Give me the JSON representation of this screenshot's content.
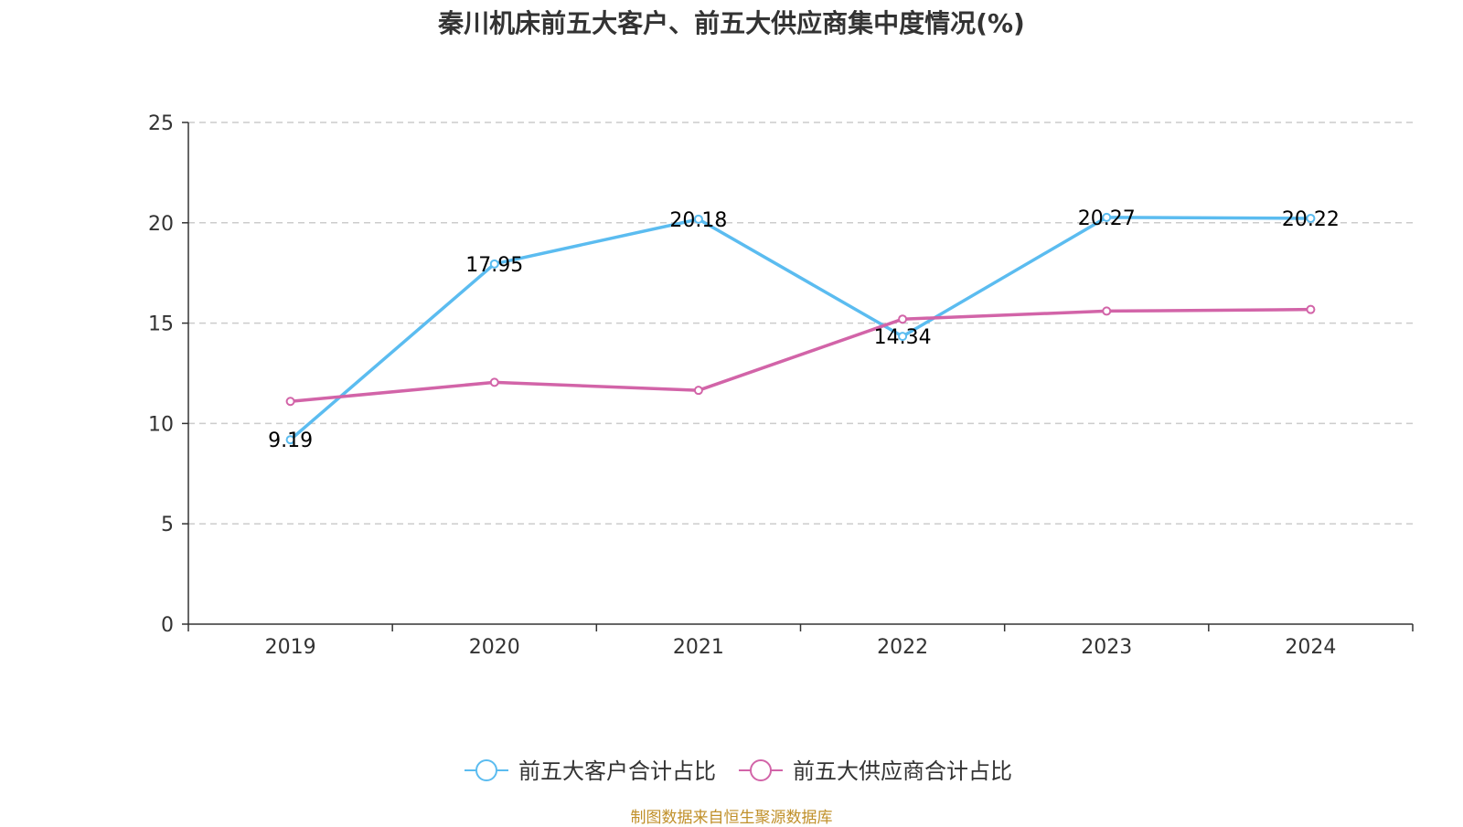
{
  "chart_data": {
    "type": "line",
    "title": "秦川机床前五大客户、前五大供应商集中度情况(%)",
    "categories": [
      "2019",
      "2020",
      "2021",
      "2022",
      "2023",
      "2024"
    ],
    "ylim": [
      0,
      25
    ],
    "yticks": [
      0,
      5,
      10,
      15,
      20,
      25
    ],
    "grid": true,
    "legend_position": "bottom",
    "series": [
      {
        "name": "前五大客户合计占比",
        "color": "#5bbcf0",
        "values": [
          9.19,
          17.95,
          20.18,
          14.34,
          20.27,
          20.22
        ],
        "labels": [
          "9.19",
          "17.95",
          "20.18",
          "14.34",
          "20.27",
          "20.22"
        ]
      },
      {
        "name": "前五大供应商合计占比",
        "color": "#d264a8",
        "values": [
          11.1,
          12.05,
          11.65,
          15.2,
          15.6,
          15.68
        ]
      }
    ]
  },
  "footer": {
    "source": "制图数据来自恒生聚源数据库"
  }
}
